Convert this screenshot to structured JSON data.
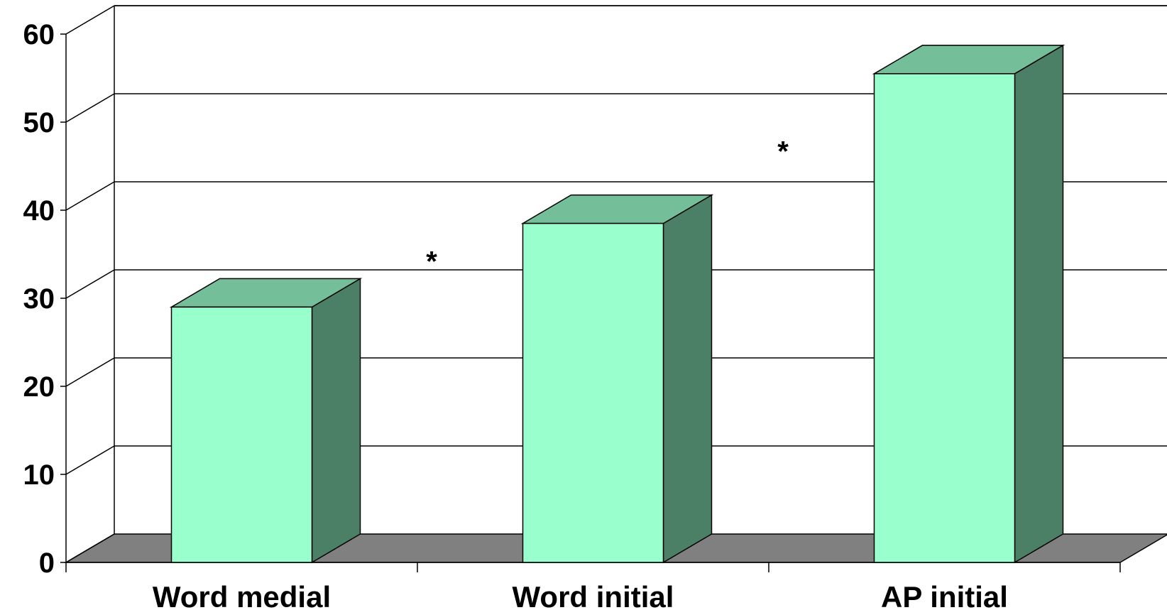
{
  "chart_data": {
    "type": "bar",
    "title": "",
    "xlabel": "",
    "ylabel": "",
    "categories": [
      "Word medial",
      "Word initial",
      "AP initial"
    ],
    "values": [
      29,
      38.5,
      55.5
    ],
    "ylim": [
      0,
      60
    ],
    "yticks": [
      0,
      10,
      20,
      30,
      40,
      50,
      60
    ],
    "grid": true,
    "legend": "none",
    "style": "3d-column",
    "annotations": [
      {
        "text": "*",
        "between": [
          "Word medial",
          "Word initial"
        ]
      },
      {
        "text": "*",
        "between": [
          "Word initial",
          "AP initial"
        ]
      }
    ],
    "colors": {
      "bar_front": "#99ffcc",
      "bar_top": "#74bf99",
      "bar_side": "#4c8066",
      "floor": "#808080"
    }
  }
}
